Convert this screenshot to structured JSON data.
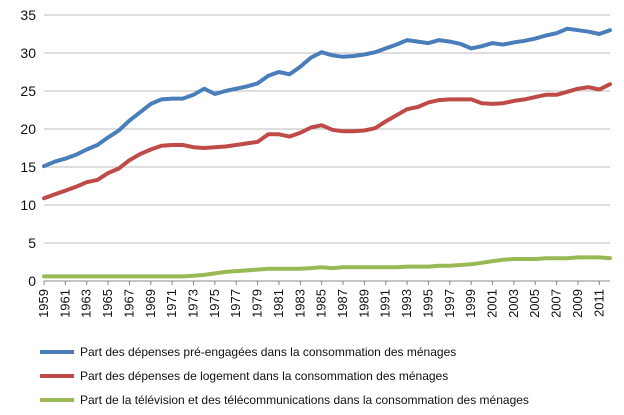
{
  "chart_data": {
    "type": "line",
    "ylim": [
      0,
      35
    ],
    "yticks": [
      "0",
      "5",
      "10",
      "15",
      "20",
      "25",
      "30",
      "35"
    ],
    "xlim": [
      1959,
      2012
    ],
    "xtick_labels": [
      "1959",
      "1961",
      "1963",
      "1965",
      "1967",
      "1969",
      "1971",
      "1973",
      "1975",
      "1977",
      "1979",
      "1981",
      "1983",
      "1985",
      "1987",
      "1989",
      "1991",
      "1993",
      "1995",
      "1997",
      "1999",
      "2001",
      "2003",
      "2005",
      "2007",
      "2009",
      "2011"
    ],
    "grid": "horizontal",
    "legend_position": "bottom",
    "x": [
      1959,
      1960,
      1961,
      1962,
      1963,
      1964,
      1965,
      1966,
      1967,
      1968,
      1969,
      1970,
      1971,
      1972,
      1973,
      1974,
      1975,
      1976,
      1977,
      1978,
      1979,
      1980,
      1981,
      1982,
      1983,
      1984,
      1985,
      1986,
      1987,
      1988,
      1989,
      1990,
      1991,
      1992,
      1993,
      1994,
      1995,
      1996,
      1997,
      1998,
      1999,
      2000,
      2001,
      2002,
      2003,
      2004,
      2005,
      2006,
      2007,
      2008,
      2009,
      2010,
      2011,
      2012
    ],
    "series": [
      {
        "name": "Part des dépenses pré-engagées dans la consommation des ménages",
        "color": "#4a7ebb",
        "values": [
          15.1,
          15.7,
          16.1,
          16.6,
          17.3,
          17.9,
          18.9,
          19.8,
          21.1,
          22.2,
          23.3,
          23.9,
          24.0,
          24.0,
          24.5,
          25.3,
          24.6,
          25.0,
          25.3,
          25.6,
          26.0,
          27.0,
          27.5,
          27.2,
          28.2,
          29.4,
          30.1,
          29.7,
          29.5,
          29.6,
          29.8,
          30.1,
          30.6,
          31.1,
          31.7,
          31.5,
          31.3,
          31.7,
          31.5,
          31.2,
          30.6,
          30.9,
          31.3,
          31.1,
          31.4,
          31.6,
          31.9,
          32.3,
          32.6,
          33.2,
          33.0,
          32.8,
          32.5,
          33.0
        ]
      },
      {
        "name": "Part des dépenses de logement dans la consommation des ménages",
        "color": "#be4b48",
        "values": [
          10.9,
          11.4,
          11.9,
          12.4,
          13.0,
          13.3,
          14.2,
          14.8,
          15.9,
          16.7,
          17.3,
          17.8,
          17.9,
          17.9,
          17.6,
          17.5,
          17.6,
          17.7,
          17.9,
          18.1,
          18.3,
          19.3,
          19.3,
          19.0,
          19.5,
          20.2,
          20.5,
          19.9,
          19.7,
          19.7,
          19.8,
          20.1,
          21.0,
          21.8,
          22.6,
          22.9,
          23.5,
          23.8,
          23.9,
          23.9,
          23.9,
          23.4,
          23.3,
          23.4,
          23.7,
          23.9,
          24.2,
          24.5,
          24.5,
          24.9,
          25.3,
          25.5,
          25.2,
          25.9
        ]
      },
      {
        "name": "Part de la télévision et des télécommunications dans la consommation des ménages",
        "color": "#98b954",
        "values": [
          0.6,
          0.6,
          0.6,
          0.6,
          0.6,
          0.6,
          0.6,
          0.6,
          0.6,
          0.6,
          0.6,
          0.6,
          0.6,
          0.6,
          0.7,
          0.8,
          1.0,
          1.2,
          1.3,
          1.4,
          1.5,
          1.6,
          1.6,
          1.6,
          1.6,
          1.7,
          1.8,
          1.7,
          1.8,
          1.8,
          1.8,
          1.8,
          1.8,
          1.8,
          1.9,
          1.9,
          1.9,
          2.0,
          2.0,
          2.1,
          2.2,
          2.4,
          2.6,
          2.8,
          2.9,
          2.9,
          2.9,
          3.0,
          3.0,
          3.0,
          3.1,
          3.1,
          3.1,
          3.0
        ]
      }
    ]
  }
}
